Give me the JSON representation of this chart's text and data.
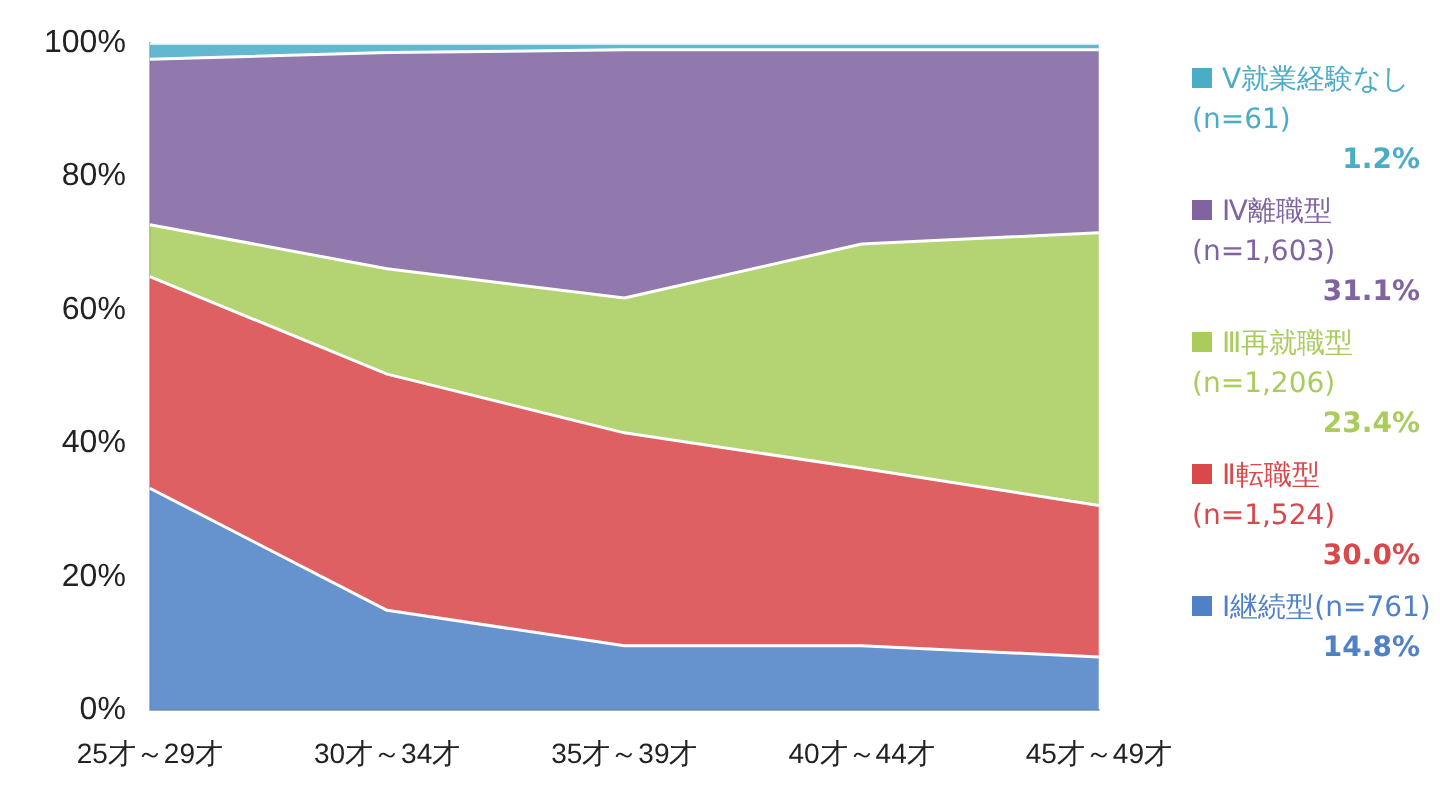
{
  "chart_data": {
    "type": "area",
    "stacked": true,
    "categories": [
      "25才～29才",
      "30才～34才",
      "35才～39才",
      "40才～44才",
      "45才～49才"
    ],
    "series": [
      {
        "name": "Ⅰ継続型(n=761)",
        "color": "#4f81c7",
        "values": [
          33.3,
          15.0,
          9.7,
          9.7,
          8.0
        ]
      },
      {
        "name": "Ⅱ転職型(n=1,524)",
        "color": "#d9484a",
        "values": [
          31.7,
          35.4,
          31.9,
          26.6,
          22.7
        ]
      },
      {
        "name": "Ⅲ再就職型(n=1,206)",
        "color": "#a9cc5c",
        "values": [
          7.8,
          15.8,
          20.2,
          33.6,
          40.9
        ]
      },
      {
        "name": "Ⅳ離職型(n=1,603)",
        "color": "#8064a2",
        "values": [
          24.8,
          32.4,
          37.2,
          29.1,
          27.4
        ]
      },
      {
        "name": "Ⅴ就業経験なし(n=61)",
        "color": "#4bacc6",
        "values": [
          2.4,
          1.4,
          1.0,
          1.0,
          1.0
        ]
      }
    ],
    "annotations": [
      "14.8%",
      "30.0%",
      "23.4%",
      "31.1%",
      "1.2%"
    ],
    "ylim": [
      0,
      100
    ],
    "yticks": [
      {
        "value": 0,
        "label": "0%"
      },
      {
        "value": 20,
        "label": "20%"
      },
      {
        "value": 40,
        "label": "40%"
      },
      {
        "value": 60,
        "label": "60%"
      },
      {
        "value": 80,
        "label": "80%"
      },
      {
        "value": 100,
        "label": "100%"
      }
    ],
    "grid": false,
    "legend": "right"
  }
}
